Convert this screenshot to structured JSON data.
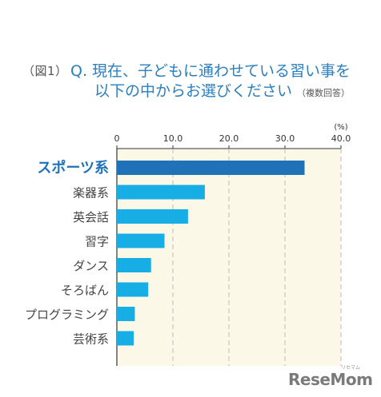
{
  "header": {
    "figure_label": "（図1）",
    "question_line1": "Q. 現在、子どもに通わせている習い事を",
    "question_line2": "以下の中からお選びください",
    "question_note": "（複数回答）"
  },
  "chart_data": {
    "type": "bar",
    "orientation": "horizontal",
    "categories": [
      "スポーツ系",
      "楽器系",
      "英会話",
      "習字",
      "ダンス",
      "そろばん",
      "プログラミング",
      "芸術系"
    ],
    "values": [
      33.5,
      15.7,
      12.7,
      8.5,
      6.1,
      5.6,
      3.2,
      3.0
    ],
    "unit_label": "(%)",
    "xlim": [
      0,
      40
    ],
    "ticks": [
      0,
      10.0,
      20.0,
      30.0,
      40.0
    ],
    "tick_labels": [
      "0",
      "10.0",
      "20.0",
      "30.0",
      "40.0"
    ],
    "grid": true,
    "highlight_index": 0,
    "colors": {
      "bar": "#17aee5",
      "highlight_bar": "#1f72b8",
      "highlight_label": "#1f72b8",
      "label": "#444444",
      "plot_bg": "#fcf8e8",
      "grid": "#bbbbbb",
      "axis": "#333333"
    }
  },
  "brand": {
    "name": "ReseMom",
    "kana": "リセマム"
  }
}
